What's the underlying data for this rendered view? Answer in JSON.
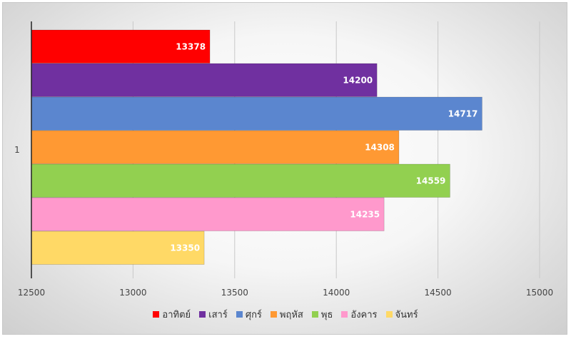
{
  "chart_data": {
    "type": "bar",
    "orientation": "horizontal",
    "categories": [
      "1"
    ],
    "series": [
      {
        "name": "อาทิตย์",
        "values": [
          13378
        ],
        "color": "#ff0000"
      },
      {
        "name": "เสาร์",
        "values": [
          14200
        ],
        "color": "#7030a0"
      },
      {
        "name": "ศุกร์",
        "values": [
          14717
        ],
        "color": "#5b86cf"
      },
      {
        "name": "พฤหัส",
        "values": [
          14308
        ],
        "color": "#ff9933"
      },
      {
        "name": "พุธ",
        "values": [
          14559
        ],
        "color": "#92d050"
      },
      {
        "name": "อังคาร",
        "values": [
          14235
        ],
        "color": "#ff99cc"
      },
      {
        "name": "จันทร์",
        "values": [
          13350
        ],
        "color": "#ffd966"
      }
    ],
    "xlim": [
      12500,
      15000
    ],
    "xticks": [
      "12500",
      "13000",
      "13500",
      "14000",
      "14500",
      "15000"
    ],
    "grid": true,
    "legend_position": "bottom",
    "data_labels": true
  }
}
